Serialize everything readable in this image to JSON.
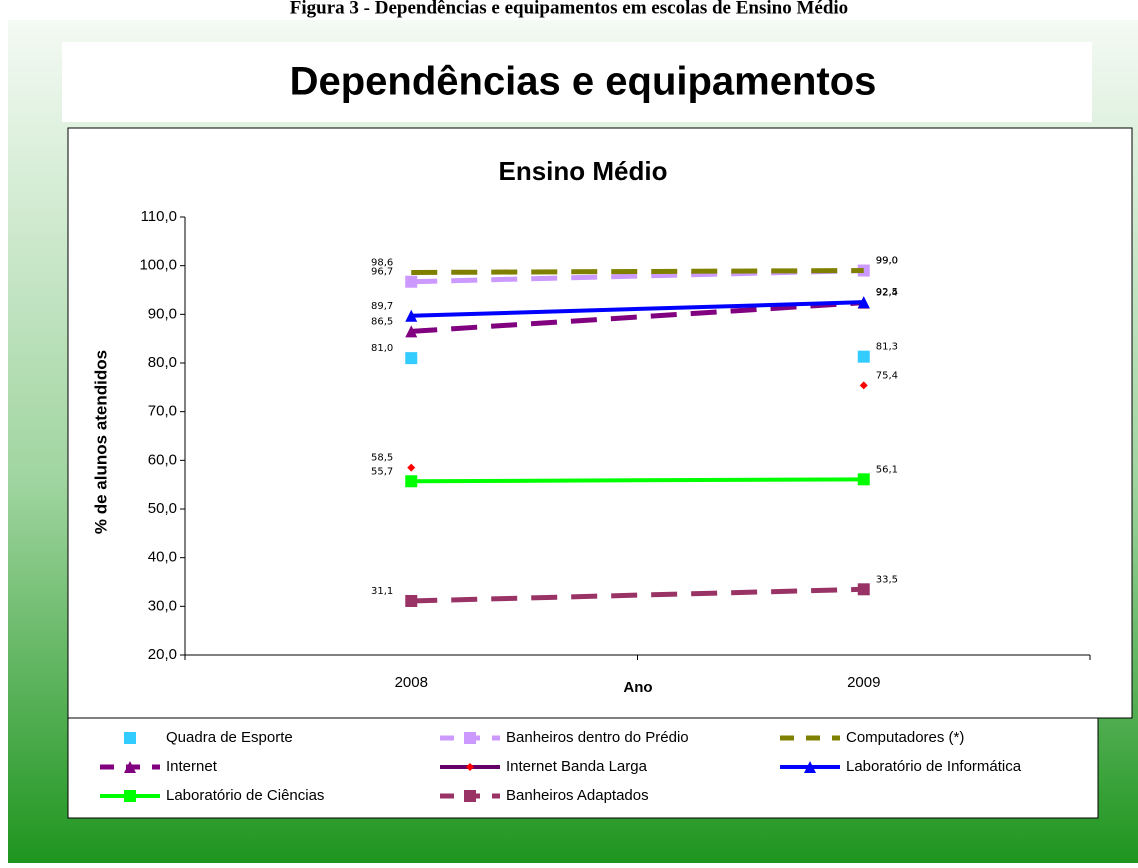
{
  "caption": "Figura 3 - Dependências e equipamentos em escolas de Ensino Médio",
  "banner": "Dependências e equipamentos",
  "chart_data": {
    "type": "line",
    "title": "Ensino Médio",
    "xlabel": "Ano",
    "ylabel": "% de alunos atendidos",
    "categories": [
      "2008",
      "2009"
    ],
    "ylim": [
      20,
      110
    ],
    "yticks": [
      {
        "value": 20,
        "label": "20,0"
      },
      {
        "value": 30,
        "label": "30,0"
      },
      {
        "value": 40,
        "label": "40,0"
      },
      {
        "value": 50,
        "label": "50,0"
      },
      {
        "value": 60,
        "label": "60,0"
      },
      {
        "value": 70,
        "label": "70,0"
      },
      {
        "value": 80,
        "label": "80,0"
      },
      {
        "value": 90,
        "label": "90,0"
      },
      {
        "value": 100,
        "label": "100,0"
      },
      {
        "value": 110,
        "label": "110,0"
      }
    ],
    "series": [
      {
        "name": "Quadra de Esporte",
        "color": "#33ccff",
        "line": false,
        "marker": "square",
        "values": [
          81.0,
          81.3
        ],
        "value_labels": [
          "81,0",
          "81,3"
        ]
      },
      {
        "name": "Banheiros dentro do Prédio",
        "color": "#cc99ff",
        "line": true,
        "dash": true,
        "marker": "square",
        "values": [
          96.7,
          99.0
        ],
        "value_labels": [
          "96,7",
          "99,0"
        ]
      },
      {
        "name": "Computadores (*)",
        "color": "#808000",
        "line": true,
        "dash": true,
        "values": [
          98.6,
          99.0
        ],
        "value_labels": [
          "98,6",
          "99,0"
        ]
      },
      {
        "name": "Internet",
        "color": "#800080",
        "line": true,
        "dash": true,
        "marker": "triangle",
        "values": [
          86.5,
          92.4
        ],
        "value_labels": [
          "86,5",
          "92,4"
        ]
      },
      {
        "name": "Internet Banda Larga",
        "color": "#660066",
        "marker_color": "#ff0000",
        "line": false,
        "marker": "diamond",
        "values": [
          58.5,
          75.4
        ],
        "value_labels": [
          "58,5",
          "75,4"
        ]
      },
      {
        "name": "Laboratório de Informática",
        "color": "#0000ff",
        "line": true,
        "dash": false,
        "marker": "triangle",
        "values": [
          89.7,
          92.5
        ],
        "value_labels": [
          "89,7",
          "92,5"
        ]
      },
      {
        "name": "Laboratório de Ciências",
        "color": "#00ff00",
        "line": true,
        "dash": false,
        "marker": "square",
        "values": [
          55.7,
          56.1
        ],
        "value_labels": [
          "55,7",
          "56,1"
        ]
      },
      {
        "name": "Banheiros Adaptados",
        "color": "#993366",
        "line": true,
        "dash": true,
        "marker": "square",
        "values": [
          31.1,
          33.5
        ],
        "value_labels": [
          "31,1",
          "33,5"
        ]
      }
    ]
  }
}
